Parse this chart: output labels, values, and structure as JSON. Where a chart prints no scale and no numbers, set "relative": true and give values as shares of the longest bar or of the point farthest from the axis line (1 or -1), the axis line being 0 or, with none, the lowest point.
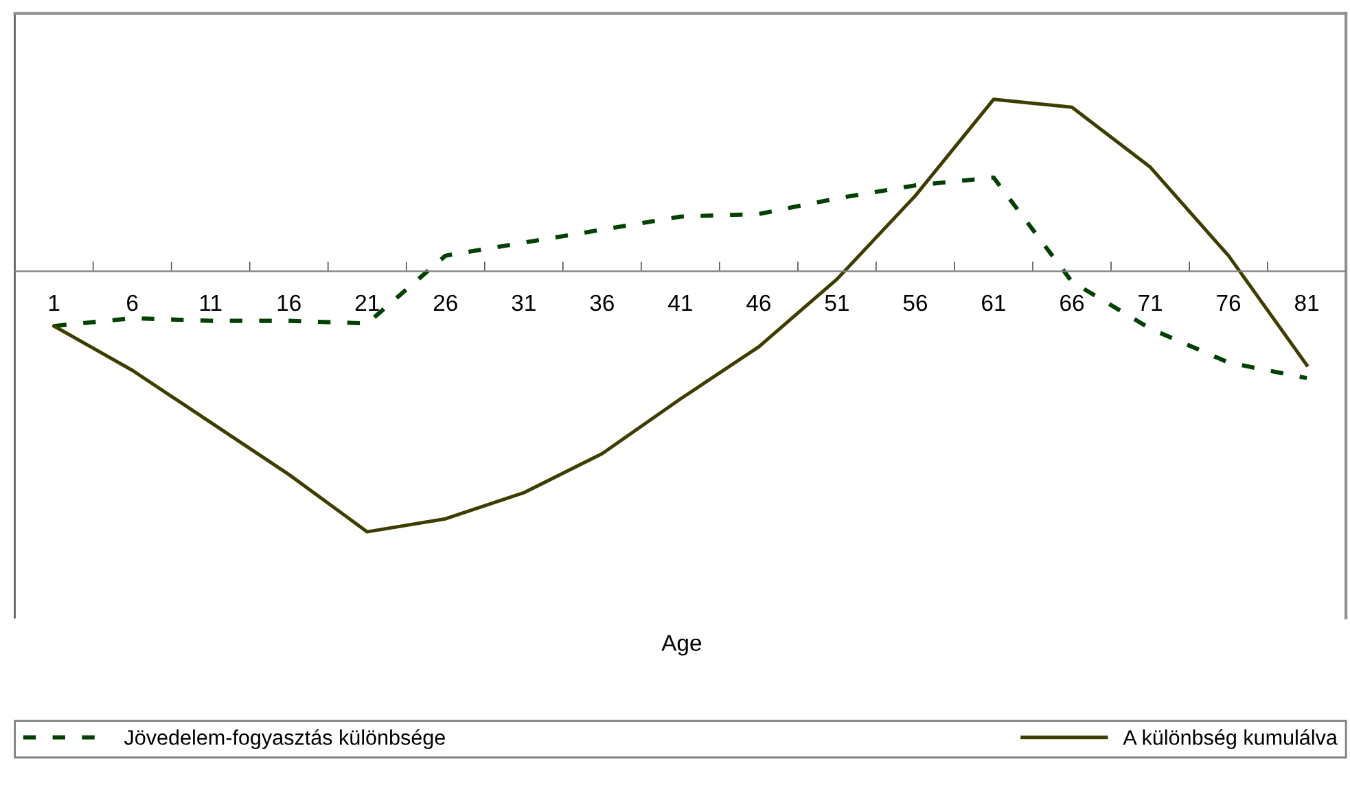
{
  "chart_data": {
    "type": "line",
    "relative": true,
    "xlabel": "Age",
    "legend": "bottom",
    "grid": false,
    "categories": [
      "1",
      "6",
      "11",
      "16",
      "21",
      "26",
      "31",
      "36",
      "41",
      "46",
      "51",
      "56",
      "61",
      "66",
      "71",
      "76",
      "81"
    ],
    "series": [
      {
        "name": "Jövedelem-fogyasztás különbsége",
        "color": "#004000",
        "line_style": "dotted",
        "values": [
          -0.21,
          -0.18,
          -0.19,
          -0.19,
          -0.2,
          0.06,
          0.11,
          0.16,
          0.21,
          0.22,
          0.28,
          0.33,
          0.36,
          -0.04,
          -0.22,
          -0.35,
          -0.41
        ]
      },
      {
        "name": "A különbség kumulálva",
        "color": "#3d3d00",
        "line_style": "solid",
        "values": [
          -0.21,
          -0.38,
          -0.58,
          -0.78,
          -1.0,
          -0.95,
          -0.85,
          -0.7,
          -0.49,
          -0.29,
          -0.03,
          0.29,
          0.66,
          0.63,
          0.4,
          0.06,
          -0.36
        ]
      }
    ]
  }
}
